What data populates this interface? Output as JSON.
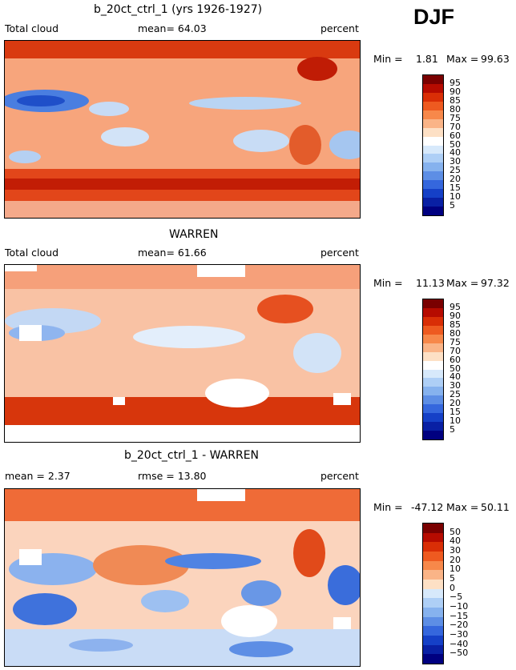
{
  "season": "DJF",
  "legend_min_label": "Min =",
  "legend_max_label": "Max =",
  "colorbar_colors": [
    "#7a0000",
    "#b60b00",
    "#d92e06",
    "#ee5a20",
    "#f7884a",
    "#fab487",
    "#fde0c5",
    "#ffffff",
    "#d7e9fb",
    "#aecff6",
    "#86b2ee",
    "#5d8ee5",
    "#3567dd",
    "#1540c7",
    "#0920a4",
    "#000080"
  ],
  "panels": [
    {
      "title": "b_20ct_ctrl_1 (yrs 1926-1927)",
      "left_label": "Total cloud",
      "center_label": "mean=  64.03",
      "right_label": "percent",
      "min": "1.81",
      "max": "99.63",
      "colorbar_ticks": [
        "95",
        "90",
        "85",
        "80",
        "75",
        "70",
        "60",
        "50",
        "40",
        "30",
        "25",
        "20",
        "15",
        "10",
        "5"
      ]
    },
    {
      "title": "WARREN",
      "left_label": "Total cloud",
      "center_label": "mean=  61.66",
      "right_label": "percent",
      "min": "11.13",
      "max": "97.32",
      "colorbar_ticks": [
        "95",
        "90",
        "85",
        "80",
        "75",
        "70",
        "60",
        "50",
        "40",
        "30",
        "25",
        "20",
        "15",
        "10",
        "5"
      ]
    },
    {
      "title": "b_20ct_ctrl_1 - WARREN",
      "left_label": "mean =    2.37",
      "center_label": "rmse =  13.80",
      "right_label": "percent",
      "min": "-47.12",
      "max": "50.11",
      "colorbar_ticks": [
        "50",
        "40",
        "30",
        "20",
        "10",
        "5",
        "0",
        "−5",
        "−10",
        "−15",
        "−20",
        "−30",
        "−40",
        "−50"
      ]
    }
  ]
}
